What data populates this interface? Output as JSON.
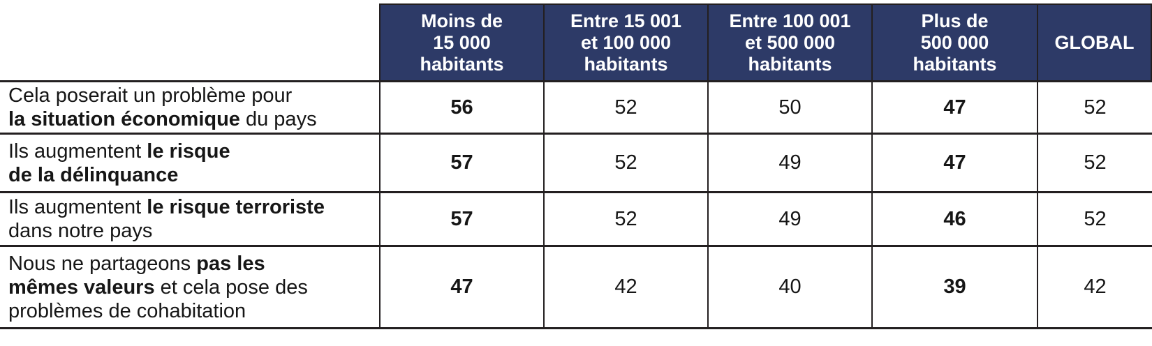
{
  "colors": {
    "header_bg": "#2d3a67",
    "header_text": "#ffffff",
    "border": "#231f20",
    "body_text": "#161616"
  },
  "table": {
    "header": {
      "columns": [
        "Moins de\n15 000\nhabitants",
        "Entre 15 001\net 100 000\nhabitants",
        "Entre 100 001\net 500 000\nhabitants",
        "Plus de\n500 000\nhabitants",
        "GLOBAL"
      ]
    },
    "rows": [
      {
        "label_lines": [
          [
            {
              "text": "Cela poserait un problème pour"
            }
          ],
          [
            {
              "text": "la situation économique",
              "bold": true
            },
            {
              "text": " du pays"
            }
          ]
        ],
        "values": [
          "56",
          "52",
          "50",
          "47",
          "52"
        ]
      },
      {
        "label_lines": [
          [
            {
              "text": "Ils augmentent "
            },
            {
              "text": "le risque",
              "bold": true
            }
          ],
          [
            {
              "text": "de la délinquance",
              "bold": true
            }
          ]
        ],
        "values": [
          "57",
          "52",
          "49",
          "47",
          "52"
        ]
      },
      {
        "label_lines": [
          [
            {
              "text": "Ils augmentent "
            },
            {
              "text": "le risque terroriste",
              "bold": true
            }
          ],
          [
            {
              "text": "dans notre pays"
            }
          ]
        ],
        "values": [
          "57",
          "52",
          "49",
          "46",
          "52"
        ]
      },
      {
        "label_lines": [
          [
            {
              "text": "Nous ne partageons "
            },
            {
              "text": "pas les",
              "bold": true
            }
          ],
          [
            {
              "text": "mêmes valeurs",
              "bold": true
            },
            {
              "text": " et cela pose des"
            }
          ],
          [
            {
              "text": "problèmes de cohabitation"
            }
          ]
        ],
        "values": [
          "47",
          "42",
          "40",
          "39",
          "42"
        ]
      }
    ]
  },
  "chart_data": {
    "type": "table",
    "columns": [
      "Moins de 15 000 habitants",
      "Entre 15 001 et 100 000 habitants",
      "Entre 100 001 et 500 000 habitants",
      "Plus de 500 000 habitants",
      "GLOBAL"
    ],
    "rows": [
      {
        "label": "Cela poserait un problème pour la situation économique du pays",
        "values": [
          56,
          52,
          50,
          47,
          52
        ]
      },
      {
        "label": "Ils augmentent le risque de la délinquance",
        "values": [
          57,
          52,
          49,
          47,
          52
        ]
      },
      {
        "label": "Ils augmentent le risque terroriste dans notre pays",
        "values": [
          57,
          52,
          49,
          46,
          52
        ]
      },
      {
        "label": "Nous ne partageons pas les mêmes valeurs et cela pose des problèmes de cohabitation",
        "values": [
          47,
          42,
          40,
          39,
          42
        ]
      }
    ],
    "emphasized_columns": [
      0,
      3
    ],
    "title": "",
    "legend_position": "none"
  }
}
